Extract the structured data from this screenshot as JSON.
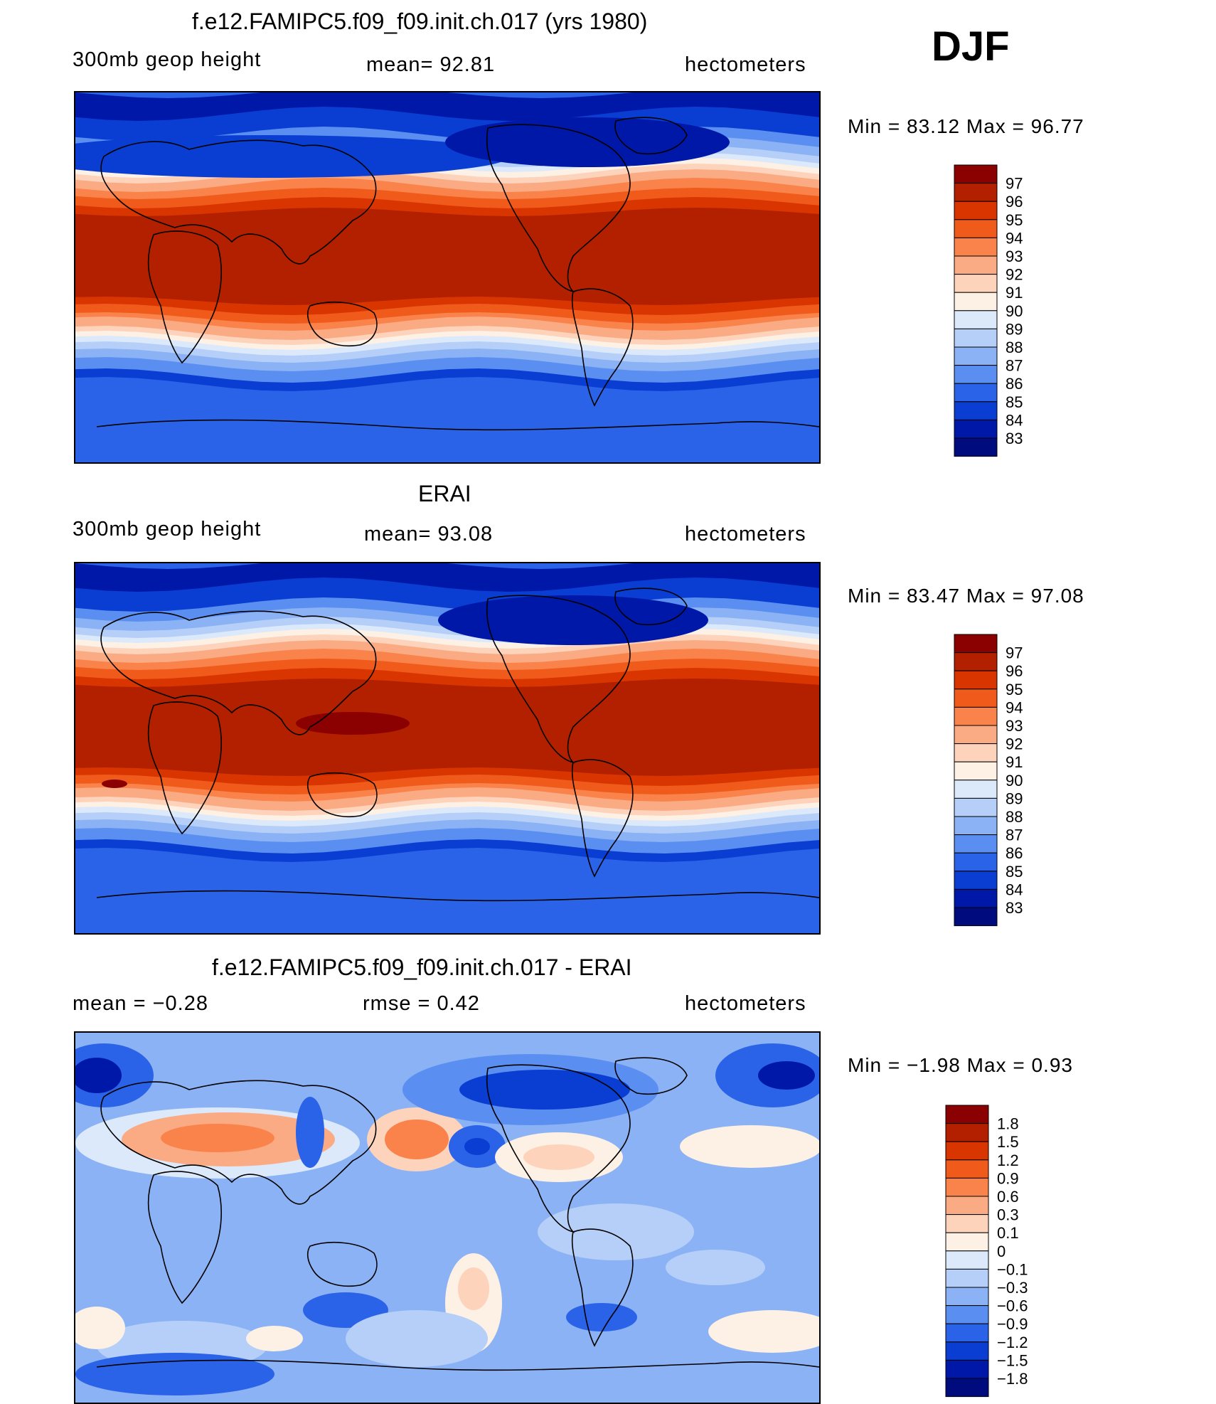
{
  "season": "DJF",
  "panels": [
    {
      "title": "f.e12.FAMIPC5.f09_f09.init.ch.017 (yrs 1980)",
      "left_label": "300mb  geop  height",
      "mid_label": "mean=   92.81",
      "right_label": "hectometers",
      "stats": "Min  =    83.12  Max  =    96.77",
      "levels": [
        "97",
        "96",
        "95",
        "94",
        "93",
        "92",
        "91",
        "90",
        "89",
        "88",
        "87",
        "86",
        "85",
        "84",
        "83"
      ]
    },
    {
      "title": "ERAI",
      "left_label": "300mb  geop  height",
      "mid_label": "mean=   93.08",
      "right_label": "hectometers",
      "stats": "Min  =    83.47  Max  =    97.08",
      "levels": [
        "97",
        "96",
        "95",
        "94",
        "93",
        "92",
        "91",
        "90",
        "89",
        "88",
        "87",
        "86",
        "85",
        "84",
        "83"
      ]
    },
    {
      "title": "f.e12.FAMIPC5.f09_f09.init.ch.017 - ERAI",
      "left_label": "mean  =    −0.28",
      "mid_label": "rmse  =     0.42",
      "right_label": "hectometers",
      "stats": "Min  =    −1.98  Max  =      0.93",
      "levels": [
        "1.8",
        "1.5",
        "1.2",
        "0.9",
        "0.6",
        "0.3",
        "0.1",
        "0",
        "−0.1",
        "−0.3",
        "−0.6",
        "−0.9",
        "−1.2",
        "−1.5",
        "−1.8"
      ]
    }
  ],
  "colors": {
    "ramp": [
      "#8b0000",
      "#b22000",
      "#d93500",
      "#f05a1a",
      "#f9834a",
      "#fbab84",
      "#fdd3bb",
      "#fdf0e4",
      "#dce9fb",
      "#b5cff8",
      "#8bb2f5",
      "#5a8ef0",
      "#2a63e8",
      "#0a3ed2",
      "#0018a8",
      "#000c7e"
    ]
  }
}
